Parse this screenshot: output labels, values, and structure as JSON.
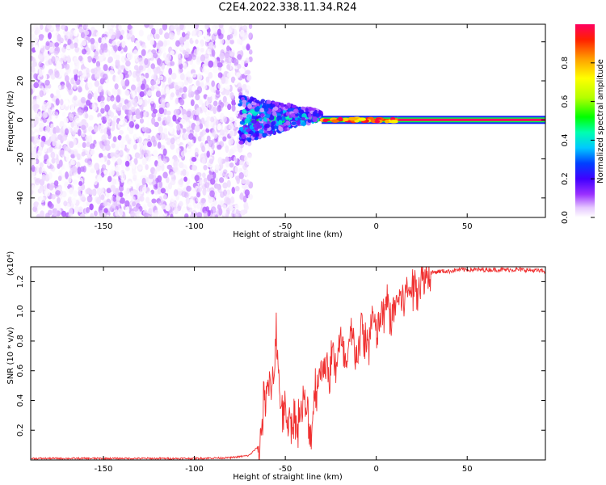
{
  "title": "C2E4.2022.338.11.34.R24",
  "chart_data": [
    {
      "type": "heatmap",
      "title": "C2E4.2022.338.11.34.R24",
      "xlabel": "Height of straight line (km)",
      "ylabel": "Frequency (Hz)",
      "xlim": [
        -190,
        93
      ],
      "ylim": [
        -50,
        49
      ],
      "x_ticks": [
        -150,
        -100,
        -50,
        0,
        50
      ],
      "x_tick_labels": [
        "-150",
        "-100",
        "-50",
        "0",
        "50"
      ],
      "y_ticks": [
        -40,
        -20,
        0,
        20,
        40
      ],
      "y_tick_labels": [
        "-40",
        "-20",
        "0",
        "20",
        "40"
      ],
      "colorbar": {
        "label": "Normalized spectral amplitude",
        "range": [
          0,
          1
        ],
        "ticks": [
          0.0,
          0.2,
          0.4,
          0.6,
          0.8
        ],
        "tick_labels": [
          "0.0",
          "0.2",
          "0.4",
          "0.6",
          "0.8"
        ],
        "colormap": [
          "#ffffff",
          "#e6c8ff",
          "#9a30ff",
          "#4000ff",
          "#0040ff",
          "#00c8ff",
          "#00ffb0",
          "#00ff00",
          "#b4ff00",
          "#ffff00",
          "#ffa000",
          "#ff2000",
          "#ff0060"
        ]
      },
      "regions": [
        {
          "x_range": [
            -190,
            -75
          ],
          "description_values": "broadband noise",
          "amplitude_range": [
            0.0,
            0.15
          ]
        },
        {
          "x_range": [
            -75,
            -30
          ],
          "freq_spread_hz": [
            -12,
            8
          ],
          "amplitude_range": [
            0.1,
            0.6
          ]
        },
        {
          "x_range": [
            -30,
            12
          ],
          "freq_center_hz": 0,
          "amplitude_range": [
            0.6,
            0.9
          ]
        },
        {
          "x_range": [
            12,
            93
          ],
          "freq_center_hz": 0,
          "amplitude_range": [
            0.9,
            1.0
          ]
        }
      ],
      "grid": false
    },
    {
      "type": "line",
      "xlabel": "Height of straight line (km)",
      "ylabel": "SNR (10 * v/v)",
      "y_multiplier_label": "(x10⁴)",
      "xlim": [
        -190,
        93
      ],
      "ylim": [
        0,
        1.3
      ],
      "x_ticks": [
        -150,
        -100,
        -50,
        0,
        50
      ],
      "x_tick_labels": [
        "-150",
        "-100",
        "-50",
        "0",
        "50"
      ],
      "y_ticks": [
        0.2,
        0.4,
        0.6,
        0.8,
        1.0,
        1.2
      ],
      "y_tick_labels": [
        "0.2",
        "0.4",
        "0.6",
        "0.8",
        "1.0",
        "1.2"
      ],
      "line_color": "#f03030",
      "series": [
        {
          "x": [
            -190,
            -150,
            -100,
            -80,
            -70,
            -64,
            -62,
            -60,
            -58,
            -56,
            -55,
            -54,
            -52,
            -50,
            -48,
            -46,
            -44,
            -42,
            -40,
            -38,
            -36,
            -34,
            -32,
            -30,
            -28,
            -26,
            -24,
            -22,
            -20,
            -18,
            -16,
            -14,
            -12,
            -10,
            -8,
            -6,
            -4,
            -2,
            0,
            2,
            4,
            6,
            8,
            10,
            12,
            14,
            16,
            18,
            20,
            22,
            24,
            26,
            28,
            30,
            35,
            40,
            45,
            50,
            60,
            70,
            80,
            93
          ],
          "y": [
            0.01,
            0.01,
            0.01,
            0.015,
            0.03,
            0.1,
            0.38,
            0.45,
            0.5,
            0.62,
            0.95,
            0.55,
            0.35,
            0.3,
            0.28,
            0.25,
            0.25,
            0.3,
            0.38,
            0.3,
            0.15,
            0.45,
            0.55,
            0.6,
            0.68,
            0.55,
            0.72,
            0.65,
            0.8,
            0.68,
            0.62,
            0.85,
            0.75,
            0.72,
            0.9,
            0.78,
            0.8,
            0.98,
            0.82,
            0.95,
            0.98,
            1.05,
            0.95,
            1.02,
            1.1,
            1.08,
            1.12,
            1.15,
            1.15,
            1.18,
            1.2,
            1.22,
            1.24,
            1.26,
            1.27,
            1.27,
            1.28,
            1.28,
            1.28,
            1.28,
            1.28,
            1.27
          ]
        }
      ],
      "grid": false
    }
  ]
}
